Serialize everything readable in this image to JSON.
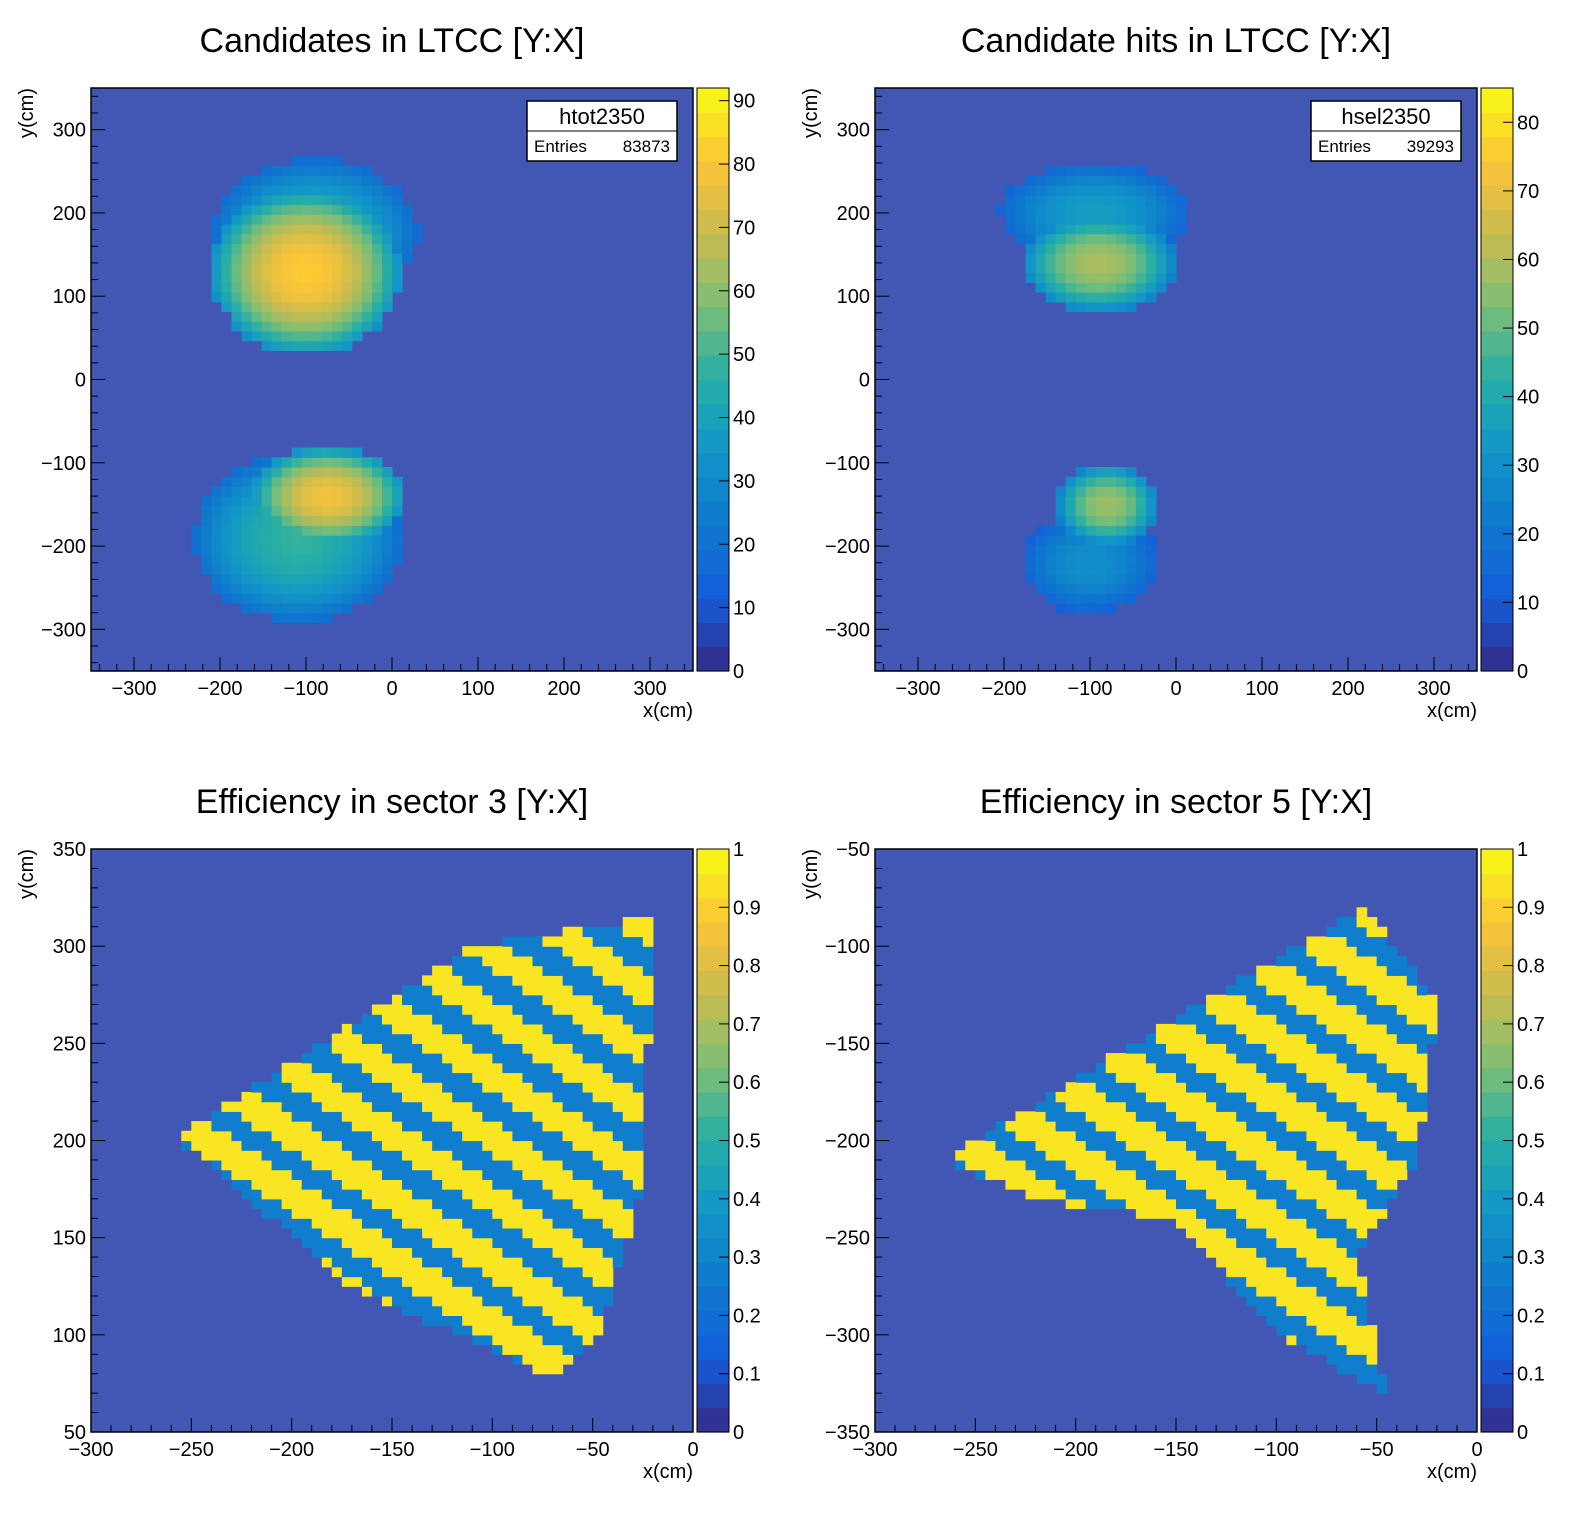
{
  "chart_data": [
    {
      "type": "heatmap",
      "title": "Candidates in LTCC [Y:X]",
      "xlabel": "x(cm)",
      "ylabel": "y(cm)",
      "xlim": [
        -350,
        350
      ],
      "ylim": [
        -350,
        350
      ],
      "zlim": [
        0,
        92
      ],
      "xticks": [
        -300,
        -200,
        -100,
        0,
        100,
        200,
        300
      ],
      "yticks": [
        -300,
        -200,
        -100,
        0,
        100,
        200,
        300
      ],
      "zticks": [
        0,
        10,
        20,
        30,
        40,
        50,
        60,
        70,
        80,
        90
      ],
      "stats": {
        "name": "htot2350",
        "rows": [
          {
            "label": "Entries",
            "value": "83873"
          }
        ]
      },
      "colormap": "parula",
      "blobs": [
        {
          "x": -100,
          "y": 130,
          "rx": 110,
          "ry": 100,
          "z": 82
        },
        {
          "x": -90,
          "y": 175,
          "rx": 120,
          "ry": 90,
          "z": 45
        },
        {
          "x": -75,
          "y": -140,
          "rx": 90,
          "ry": 60,
          "z": 78
        },
        {
          "x": -110,
          "y": -190,
          "rx": 120,
          "ry": 100,
          "z": 48
        }
      ]
    },
    {
      "type": "heatmap",
      "title": "Candidate hits in LTCC [Y:X]",
      "xlabel": "x(cm)",
      "ylabel": "y(cm)",
      "xlim": [
        -350,
        350
      ],
      "ylim": [
        -350,
        350
      ],
      "zlim": [
        0,
        85
      ],
      "xticks": [
        -300,
        -200,
        -100,
        0,
        100,
        200,
        300
      ],
      "yticks": [
        -300,
        -200,
        -100,
        0,
        100,
        200,
        300
      ],
      "zticks": [
        0,
        10,
        20,
        30,
        40,
        50,
        60,
        70,
        80
      ],
      "stats": {
        "name": "hsel2350",
        "rows": [
          {
            "label": "Entries",
            "value": "39293"
          }
        ]
      },
      "colormap": "parula",
      "blobs": [
        {
          "x": -90,
          "y": 140,
          "rx": 90,
          "ry": 60,
          "z": 60
        },
        {
          "x": -95,
          "y": 200,
          "rx": 110,
          "ry": 60,
          "z": 35
        },
        {
          "x": -80,
          "y": -150,
          "rx": 60,
          "ry": 50,
          "z": 58
        },
        {
          "x": -100,
          "y": -220,
          "rx": 80,
          "ry": 60,
          "z": 30
        }
      ]
    },
    {
      "type": "heatmap",
      "title": "Efficiency in sector 3 [Y:X]",
      "xlabel": "x(cm)",
      "ylabel": "y(cm)",
      "xlim": [
        -300,
        0
      ],
      "ylim": [
        50,
        350
      ],
      "zlim": [
        0,
        1
      ],
      "xticks": [
        -300,
        -250,
        -200,
        -150,
        -100,
        -50,
        0
      ],
      "yticks": [
        50,
        100,
        150,
        200,
        250,
        300,
        350
      ],
      "zticks": [
        0,
        0.1,
        0.2,
        0.3,
        0.4,
        0.5,
        0.6,
        0.7,
        0.8,
        0.9,
        1
      ],
      "colormap": "parula",
      "region": [
        [
          -260,
          200
        ],
        [
          -110,
          300
        ],
        [
          -20,
          315
        ],
        [
          -25,
          180
        ],
        [
          -45,
          105
        ],
        [
          -70,
          78
        ],
        [
          -170,
          125
        ],
        [
          -250,
          195
        ]
      ]
    },
    {
      "type": "heatmap",
      "title": "Efficiency in sector 5 [Y:X]",
      "xlabel": "x(cm)",
      "ylabel": "y(cm)",
      "xlim": [
        -300,
        0
      ],
      "ylim": [
        -350,
        -50
      ],
      "zlim": [
        0,
        1
      ],
      "xticks": [
        -300,
        -250,
        -200,
        -150,
        -100,
        -50,
        0
      ],
      "yticks": [
        -350,
        -300,
        -250,
        -200,
        -150,
        -100,
        -50
      ],
      "zticks": [
        0,
        0.1,
        0.2,
        0.3,
        0.4,
        0.5,
        0.6,
        0.7,
        0.8,
        0.9,
        1
      ],
      "colormap": "parula",
      "region": [
        [
          -265,
          -210
        ],
        [
          -140,
          -130
        ],
        [
          -55,
          -80
        ],
        [
          -20,
          -130
        ],
        [
          -30,
          -210
        ],
        [
          -60,
          -260
        ],
        [
          -45,
          -330
        ],
        [
          -100,
          -300
        ],
        [
          -150,
          -240
        ],
        [
          -220,
          -230
        ]
      ]
    }
  ]
}
